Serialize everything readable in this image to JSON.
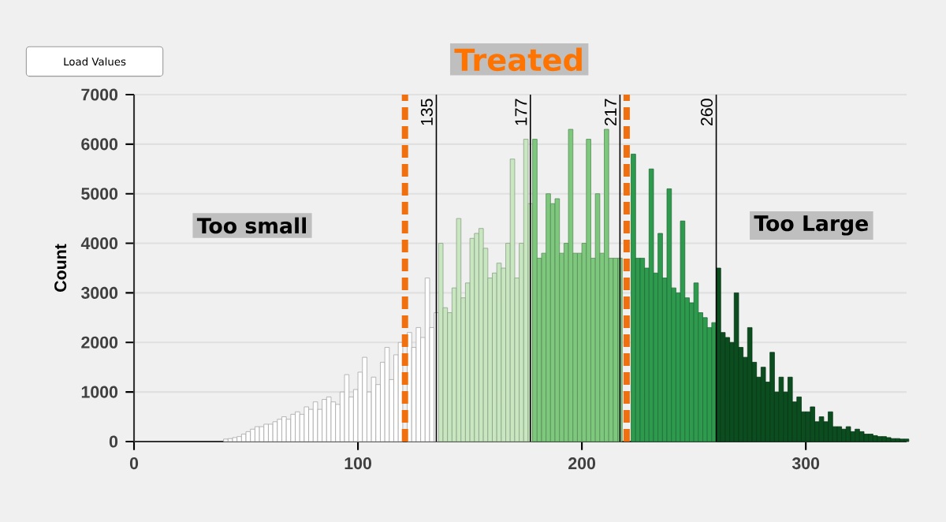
{
  "chart_data": {
    "type": "histogram",
    "title": "Treated",
    "ylabel": "Count",
    "annotations": [
      "Too small",
      "Too Large",
      "Load Values"
    ],
    "bins": [
      40,
      42,
      44,
      46,
      48,
      50,
      52,
      54,
      56,
      58,
      60,
      62,
      64,
      66,
      68,
      70,
      72,
      74,
      76,
      78,
      80,
      82,
      84,
      86,
      88,
      90,
      92,
      94,
      96,
      98,
      100,
      102,
      104,
      106,
      108,
      110,
      112,
      114,
      116,
      118,
      120,
      122,
      124,
      126,
      128,
      130,
      132,
      134,
      136,
      138,
      140,
      142,
      144,
      146,
      148,
      150,
      152,
      154,
      156,
      158,
      160,
      162,
      164,
      166,
      168,
      170,
      172,
      174,
      176,
      178,
      180,
      182,
      184,
      186,
      188,
      190,
      192,
      194,
      196,
      198,
      200,
      202,
      204,
      206,
      208,
      210,
      212,
      214,
      216,
      218,
      220,
      222,
      224,
      226,
      228,
      230,
      232,
      234,
      236,
      238,
      240,
      242,
      244,
      246,
      248,
      250,
      252,
      254,
      256,
      258,
      260,
      262,
      264,
      266,
      268,
      270,
      272,
      274,
      276,
      278,
      280,
      282,
      284,
      286,
      288,
      290,
      292,
      294,
      296,
      298,
      300,
      302,
      304,
      306,
      308,
      310,
      312,
      314,
      316,
      318,
      320,
      322,
      324,
      326,
      328,
      330,
      332,
      334,
      336,
      338,
      340,
      342,
      344,
      346
    ],
    "values": [
      50,
      60,
      80,
      100,
      150,
      200,
      250,
      300,
      300,
      350,
      350,
      400,
      450,
      500,
      450,
      550,
      600,
      550,
      700,
      650,
      800,
      650,
      850,
      900,
      800,
      750,
      1000,
      1350,
      900,
      1050,
      1400,
      1700,
      1000,
      1300,
      1150,
      1600,
      1900,
      1250,
      1750,
      2000,
      null,
      2200,
      1900,
      2300,
      2100,
      3300,
      2300,
      2600,
      4000,
      2700,
      2600,
      3100,
      4500,
      2900,
      3200,
      4100,
      4200,
      4300,
      3900,
      3300,
      3400,
      3600,
      3500,
      4000,
      5700,
      3300,
      4000,
      6100,
      4800,
      6100,
      3700,
      3800,
      5000,
      4800,
      4900,
      3800,
      4000,
      6300,
      3800,
      3800,
      4000,
      6100,
      3700,
      5000,
      3800,
      6300,
      3700,
      3700,
      3700,
      null,
      null,
      5800,
      3700,
      3700,
      3500,
      5500,
      3400,
      4200,
      3300,
      5100,
      3100,
      3000,
      4450,
      2900,
      2800,
      3200,
      2600,
      2500,
      2300,
      2400,
      3500,
      2200,
      2100,
      2000,
      3000,
      1900,
      1700,
      2300,
      1600,
      1300,
      1500,
      1200,
      1800,
      1000,
      1300,
      1000,
      1300,
      800,
      900,
      600,
      600,
      700,
      400,
      500,
      400,
      600,
      300,
      300,
      250,
      300,
      200,
      250,
      200,
      150,
      150,
      120,
      100,
      100,
      80,
      60,
      60,
      50,
      50
    ],
    "colors": [
      "#ffffff",
      "#ffffff",
      "#ffffff",
      "#ffffff",
      "#ffffff",
      "#ffffff",
      "#ffffff",
      "#ffffff",
      "#ffffff",
      "#ffffff",
      "#ffffff",
      "#ffffff",
      "#ffffff",
      "#ffffff",
      "#ffffff",
      "#ffffff",
      "#ffffff",
      "#ffffff",
      "#ffffff",
      "#ffffff",
      "#ffffff",
      "#ffffff",
      "#ffffff",
      "#ffffff",
      "#ffffff",
      "#ffffff",
      "#ffffff",
      "#ffffff",
      "#ffffff",
      "#ffffff",
      "#ffffff",
      "#ffffff",
      "#ffffff",
      "#ffffff",
      "#ffffff",
      "#ffffff",
      "#ffffff",
      "#ffffff",
      "#ffffff",
      "#ffffff",
      "#ffffff",
      "#ffffff",
      "#ffffff",
      "#ffffff",
      "#ffffff",
      "#ffffff",
      "#ffffff",
      "#ffffff",
      "#c8e6c0",
      "#c8e6c0",
      "#c8e6c0",
      "#c8e6c0",
      "#c8e6c0",
      "#c8e6c0",
      "#c8e6c0",
      "#c8e6c0",
      "#c8e6c0",
      "#c8e6c0",
      "#c8e6c0",
      "#c8e6c0",
      "#c8e6c0",
      "#c8e6c0",
      "#c8e6c0",
      "#c8e6c0",
      "#c8e6c0",
      "#c8e6c0",
      "#c8e6c0",
      "#c8e6c0",
      "#c8e6c0",
      "#7dc87d",
      "#7dc87d",
      "#7dc87d",
      "#7dc87d",
      "#7dc87d",
      "#7dc87d",
      "#7dc87d",
      "#7dc87d",
      "#7dc87d",
      "#7dc87d",
      "#7dc87d",
      "#7dc87d",
      "#7dc87d",
      "#7dc87d",
      "#7dc87d",
      "#7dc87d",
      "#7dc87d",
      "#7dc87d",
      "#7dc87d",
      "#7dc87d",
      "#2e9a4e",
      "#2e9a4e",
      "#2e9a4e",
      "#2e9a4e",
      "#2e9a4e",
      "#2e9a4e",
      "#2e9a4e",
      "#2e9a4e",
      "#2e9a4e",
      "#2e9a4e",
      "#2e9a4e",
      "#2e9a4e",
      "#2e9a4e",
      "#2e9a4e",
      "#2e9a4e",
      "#2e9a4e",
      "#2e9a4e",
      "#2e9a4e",
      "#2e9a4e",
      "#2e9a4e",
      "#2e9a4e",
      "#0b4d1e",
      "#0b4d1e",
      "#0b4d1e",
      "#0b4d1e",
      "#0b4d1e",
      "#0b4d1e",
      "#0b4d1e",
      "#0b4d1e",
      "#0b4d1e",
      "#0b4d1e",
      "#0b4d1e",
      "#0b4d1e",
      "#0b4d1e",
      "#0b4d1e",
      "#0b4d1e",
      "#0b4d1e",
      "#0b4d1e",
      "#0b4d1e",
      "#0b4d1e",
      "#0b4d1e",
      "#0b4d1e",
      "#0b4d1e",
      "#0b4d1e",
      "#0b4d1e",
      "#0b4d1e",
      "#0b4d1e",
      "#0b4d1e",
      "#0b4d1e",
      "#0b4d1e",
      "#0b4d1e",
      "#0b4d1e",
      "#0b4d1e",
      "#0b4d1e",
      "#0b4d1e",
      "#0b4d1e",
      "#0b4d1e",
      "#0b4d1e",
      "#0b4d1e",
      "#0b4d1e",
      "#0b4d1e",
      "#0b4d1e",
      "#0b4d1e",
      "#0b4d1e"
    ],
    "xlim": [
      0,
      345
    ],
    "xticks": [
      0,
      100,
      200,
      300
    ],
    "ylim": [
      0,
      7000
    ],
    "yticks": [
      0,
      1000,
      2000,
      3000,
      4000,
      5000,
      6000,
      7000
    ],
    "grid": "y",
    "ref_lines": [
      {
        "axis": "x",
        "value": 135,
        "label": "135",
        "color": "#000000"
      },
      {
        "axis": "x",
        "value": 177,
        "label": "177",
        "color": "#000000"
      },
      {
        "axis": "x",
        "value": 217,
        "label": "217",
        "color": "#000000"
      },
      {
        "axis": "x",
        "value": 260,
        "label": "260",
        "color": "#000000"
      },
      {
        "axis": "x",
        "value": 121,
        "color": "#f07010",
        "line_style": "dashed"
      },
      {
        "axis": "x",
        "value": 220,
        "color": "#f07010",
        "line_style": "dashed"
      }
    ]
  }
}
